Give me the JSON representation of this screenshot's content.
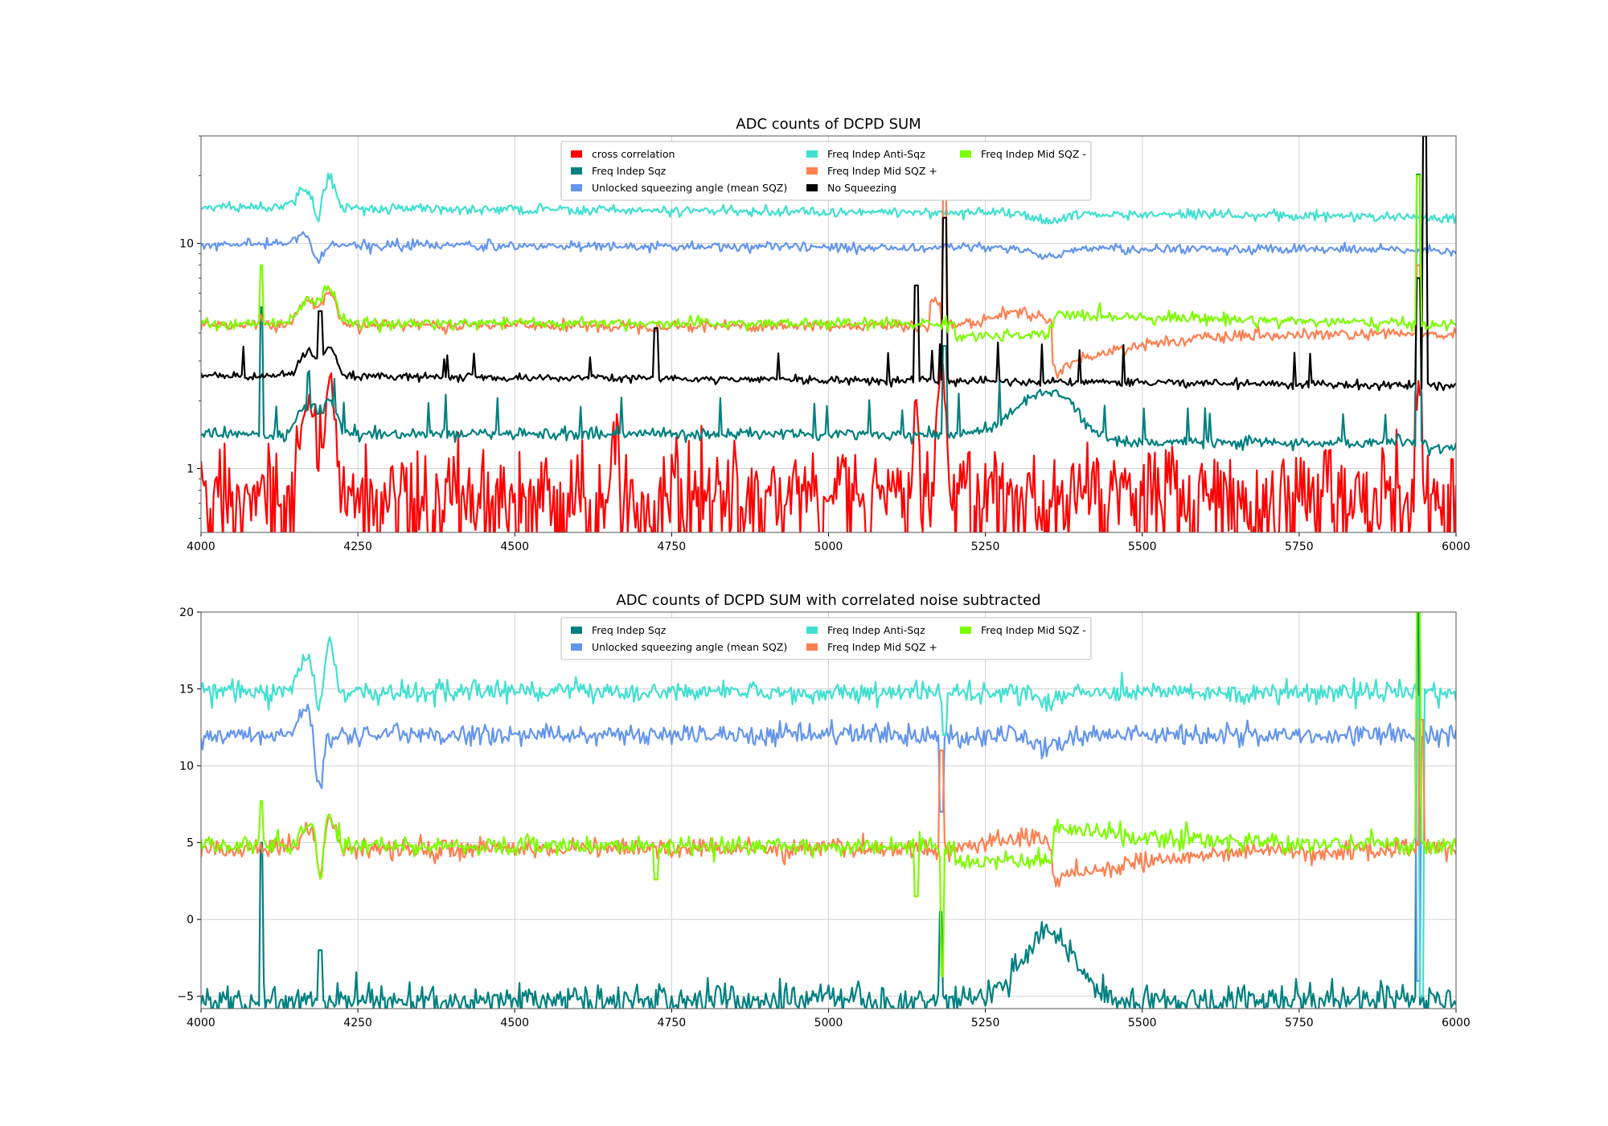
{
  "chart_data": [
    {
      "type": "line",
      "title": "ADC counts of DCPD SUM",
      "xlabel": "",
      "ylabel": "",
      "xlim": [
        4000,
        6000
      ],
      "ylim": [
        0.52,
        30
      ],
      "yscale": "log",
      "xticks": [
        4000,
        4250,
        4500,
        4750,
        5000,
        5250,
        5500,
        5750,
        6000
      ],
      "xtick_labels": [
        "4000",
        "4250",
        "4500",
        "4750",
        "5000",
        "5250",
        "5500",
        "5750",
        "6000"
      ],
      "yticks": [
        1,
        10
      ],
      "ytick_labels": [
        "1",
        "10"
      ],
      "grid": true,
      "legend_position": "upper center",
      "series": [
        {
          "name": "cross correlation",
          "color": "#ff0000",
          "level": 0.72,
          "noise": 0.55,
          "kind": "red"
        },
        {
          "name": "Freq Indep Sqz",
          "color": "#008080",
          "level": 1.42,
          "noise": 0.03,
          "kind": "teal_log"
        },
        {
          "name": "Unlocked squeezing angle (mean SQZ)",
          "color": "#6495ed",
          "level": 9.9,
          "noise": 0.025,
          "kind": "blue_log"
        },
        {
          "name": "Freq Indep Anti-Sqz",
          "color": "#40e0d0",
          "level": 14.5,
          "noise": 0.025,
          "kind": "cyan_log"
        },
        {
          "name": "Freq Indep Mid SQZ +",
          "color": "#ff7f50",
          "level": 4.3,
          "noise": 0.03,
          "kind": "orange_log"
        },
        {
          "name": "No Squeezing",
          "color": "#000000",
          "level": 2.55,
          "noise": 0.02,
          "kind": "black_log"
        },
        {
          "name": "Freq Indep Mid SQZ -",
          "color": "#7cfc00",
          "level": 4.4,
          "noise": 0.03,
          "kind": "green_log"
        }
      ],
      "legend_order": [
        "cross correlation",
        "Freq Indep Sqz",
        "Unlocked squeezing angle (mean SQZ)",
        "Freq Indep Anti-Sqz",
        "Freq Indep Mid SQZ +",
        "No Squeezing",
        "Freq Indep Mid SQZ -"
      ]
    },
    {
      "type": "line",
      "title": "ADC counts of DCPD SUM with correlated noise subtracted",
      "xlabel": "",
      "ylabel": "",
      "xlim": [
        4000,
        6000
      ],
      "ylim": [
        -5.8,
        20
      ],
      "yscale": "linear",
      "xticks": [
        4000,
        4250,
        4500,
        4750,
        5000,
        5250,
        5500,
        5750,
        6000
      ],
      "xtick_labels": [
        "4000",
        "4250",
        "4500",
        "4750",
        "5000",
        "5250",
        "5500",
        "5750",
        "6000"
      ],
      "yticks": [
        -5,
        0,
        5,
        10,
        15,
        20
      ],
      "ytick_labels": [
        "−5",
        "0",
        "5",
        "10",
        "15",
        "20"
      ],
      "grid": true,
      "legend_position": "upper center",
      "series": [
        {
          "name": "Freq Indep Sqz",
          "color": "#008080",
          "level": -5.3,
          "noise": 0.45,
          "kind": "teal_lin"
        },
        {
          "name": "Unlocked squeezing angle (mean SQZ)",
          "color": "#6495ed",
          "level": 12.0,
          "noise": 0.35,
          "kind": "blue_lin"
        },
        {
          "name": "Freq Indep Anti-Sqz",
          "color": "#40e0d0",
          "level": 14.8,
          "noise": 0.35,
          "kind": "cyan_lin"
        },
        {
          "name": "Freq Indep Mid SQZ +",
          "color": "#ff7f50",
          "level": 4.6,
          "noise": 0.3,
          "kind": "orange_lin"
        },
        {
          "name": "Freq Indep Mid SQZ -",
          "color": "#7cfc00",
          "level": 4.8,
          "noise": 0.3,
          "kind": "green_lin"
        }
      ],
      "legend_order": [
        "Freq Indep Sqz",
        "Unlocked squeezing angle (mean SQZ)",
        "Freq Indep Anti-Sqz",
        "Freq Indep Mid SQZ +",
        "Freq Indep Mid SQZ -"
      ]
    }
  ]
}
